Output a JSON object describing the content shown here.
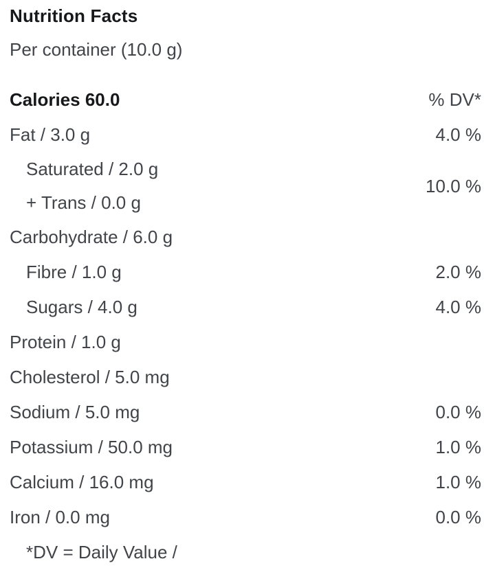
{
  "header": {
    "title": "Nutrition Facts",
    "serving": "Per container (10.0 g)"
  },
  "table": {
    "calories": "Calories 60.0",
    "dv_header": "% DV*",
    "rows": [
      {
        "label": "Fat / 3.0 g",
        "dv": "4.0 %",
        "indent": 0
      },
      {
        "lines": [
          "Saturated / 2.0 g",
          "+ Trans / 0.0 g"
        ],
        "dv": "10.0 %",
        "indent": 1
      },
      {
        "label": "Carbohydrate / 6.0 g",
        "dv": "",
        "indent": 0
      },
      {
        "label": "Fibre / 1.0 g",
        "dv": "2.0 %",
        "indent": 1
      },
      {
        "label": "Sugars / 4.0 g",
        "dv": "4.0 %",
        "indent": 1
      },
      {
        "label": "Protein / 1.0 g",
        "dv": "",
        "indent": 0
      },
      {
        "label": "Cholesterol / 5.0 mg",
        "dv": "",
        "indent": 0
      },
      {
        "label": "Sodium / 5.0 mg",
        "dv": "0.0 %",
        "indent": 0
      },
      {
        "label": "Potassium / 50.0 mg",
        "dv": "1.0 %",
        "indent": 0
      },
      {
        "label": "Calcium / 16.0 mg",
        "dv": "1.0 %",
        "indent": 0
      },
      {
        "label": "Iron / 0.0 mg",
        "dv": "0.0 %",
        "indent": 0
      }
    ],
    "footnote": "*DV = Daily Value /"
  },
  "colors": {
    "title_text": "#17181a",
    "body_text": "#414448",
    "background": "#ffffff"
  }
}
